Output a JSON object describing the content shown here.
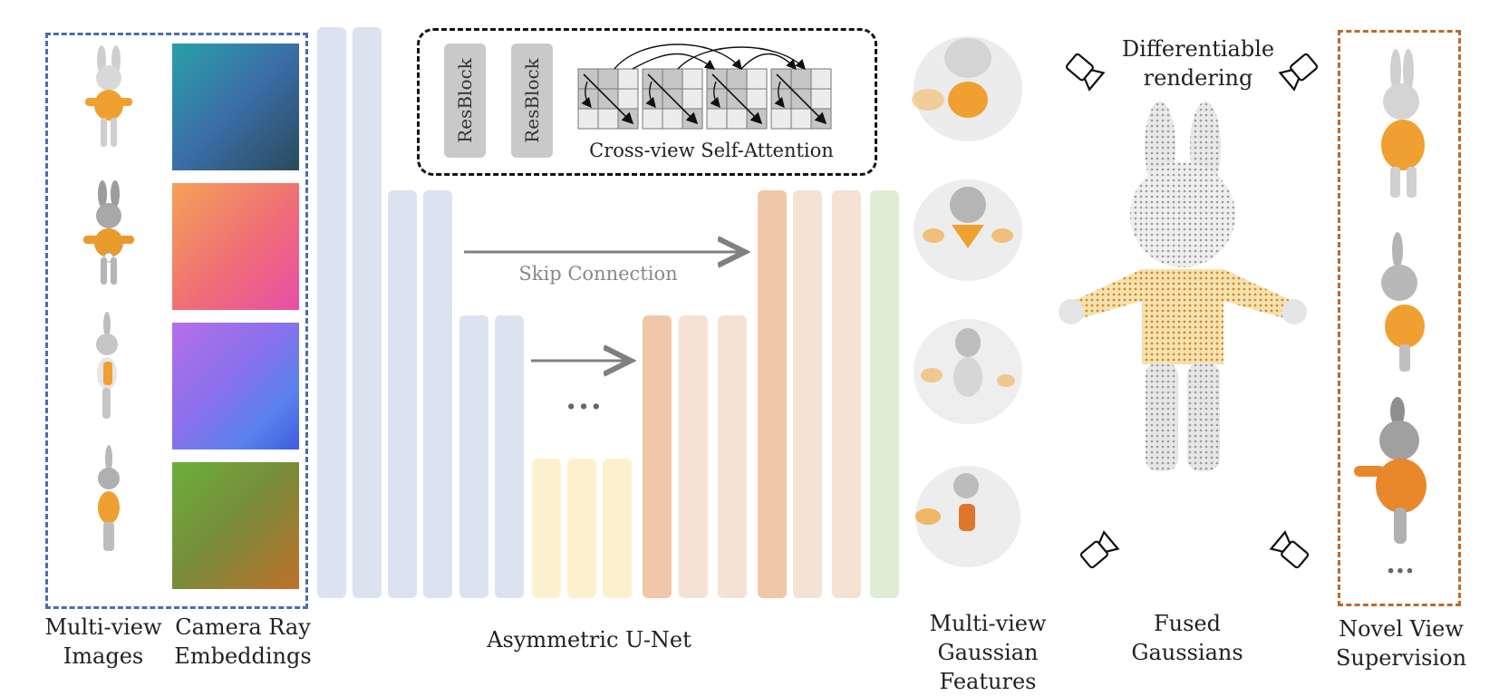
{
  "labels": {
    "multiview_images": "Multi-view\nImages",
    "camera_ray": "Camera Ray\nEmbeddings",
    "unet": "Asymmetric U-Net",
    "gaussian_features": "Multi-view\nGaussian Features",
    "fused": "Fused\nGaussians",
    "novel_view": "Novel View\nSupervision",
    "diff_render": "Differentiable\nrendering",
    "skip": "Skip Connection",
    "cross_view": "Cross-view Self-Attention",
    "resblock": "ResBlock",
    "dots_mid": "...",
    "dots_novel": "..."
  },
  "colors": {
    "encoder": "#dbe3f0",
    "bottleneck": "#fcf1cf",
    "decoder_light": "#f6e1d5",
    "decoder_strong": "#f1c7a9",
    "output": "#deeed5",
    "frame_input": "#4a6db5",
    "frame_supervision": "#c0692b",
    "bunny_shirt": "#f0a030"
  },
  "icons": {
    "camera": "camera-icon",
    "bunny": "bunny-figure",
    "gaussian": "gaussian-splat"
  }
}
